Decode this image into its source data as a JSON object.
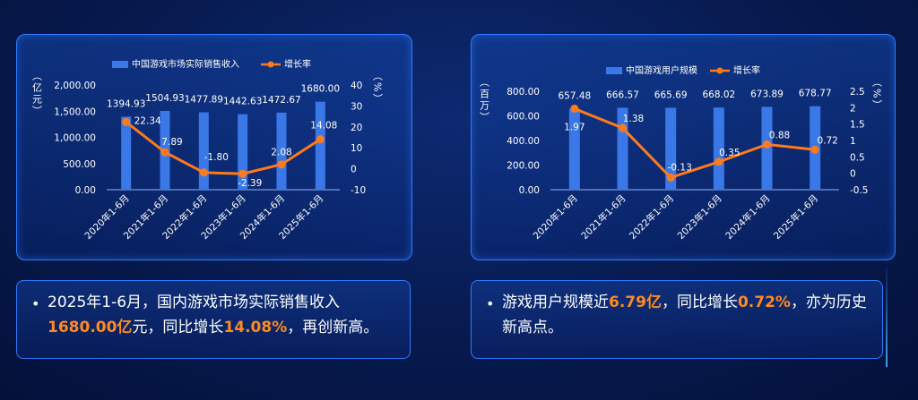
{
  "colors": {
    "bar": "#3a78e8",
    "line": "#ff7a1a",
    "highlight": "#ff8a1f",
    "text": "#ffffff"
  },
  "chart_data": [
    {
      "type": "bar",
      "categories": [
        "2020年1-6月",
        "2021年1-6月",
        "2022年1-6月",
        "2023年1-6月",
        "2024年1-6月",
        "2025年1-6月"
      ],
      "series": [
        {
          "name": "中国游戏市场实际销售收入",
          "type": "bar",
          "axis": "left",
          "values": [
            1394.93,
            1504.93,
            1477.89,
            1442.63,
            1472.67,
            1680.0
          ],
          "labels": [
            "1394.93",
            "1504.93",
            "1477.89",
            "1442.63",
            "1472.67",
            "1680.00"
          ]
        },
        {
          "name": "增长率",
          "type": "line",
          "axis": "right",
          "values": [
            22.34,
            7.89,
            -1.8,
            -2.39,
            2.08,
            14.08
          ],
          "labels": [
            "22.34",
            "7.89",
            "-1.80",
            "-2.39",
            "2.08",
            "14.08"
          ]
        }
      ],
      "ylabel_left": "（亿元）",
      "ylabel_right": "（%）",
      "ylim_left": [
        0,
        2000
      ],
      "ylim_right": [
        -10,
        40
      ],
      "yticks_left": [
        "2,000.00",
        "1,500.00",
        "1,000.00",
        "500.00",
        "0.00"
      ],
      "yticks_right": [
        "40",
        "30",
        "20",
        "10",
        "0",
        "-10"
      ],
      "legend_position": "top"
    },
    {
      "type": "bar",
      "categories": [
        "2020年1-6月",
        "2021年1-6月",
        "2022年1-6月",
        "2023年1-6月",
        "2024年1-6月",
        "2025年1-6月"
      ],
      "series": [
        {
          "name": "中国游戏用户规模",
          "type": "bar",
          "axis": "left",
          "values": [
            657.48,
            666.57,
            665.69,
            668.02,
            673.89,
            678.77
          ],
          "labels": [
            "657.48",
            "666.57",
            "665.69",
            "668.02",
            "673.89",
            "678.77"
          ]
        },
        {
          "name": "增长率",
          "type": "line",
          "axis": "right",
          "values": [
            1.97,
            1.38,
            -0.13,
            0.35,
            0.88,
            0.72
          ],
          "labels": [
            "1.97",
            "1.38",
            "-0.13",
            "0.35",
            "0.88",
            "0.72"
          ]
        }
      ],
      "ylabel_left": "（百万）",
      "ylabel_right": "（%）",
      "ylim_left": [
        0,
        800
      ],
      "ylim_right": [
        -0.5,
        2.5
      ],
      "yticks_left": [
        "800.00",
        "600.00",
        "400.00",
        "200.00",
        "0.00"
      ],
      "yticks_right": [
        "2.5",
        "2",
        "1.5",
        "1",
        "0.5",
        "0",
        "-0.5"
      ],
      "legend_position": "top"
    }
  ],
  "notes": {
    "left": {
      "bullet": "•",
      "p1": "2025年1-6月，国内游戏市场实际销售收入",
      "h1": "1680.00亿",
      "p2": "元，同比增长",
      "h2": "14.08%",
      "p3": "，再创新高。"
    },
    "right": {
      "bullet": "•",
      "p1": "游戏用户规模近",
      "h1": "6.79亿",
      "p2": "，同比增长",
      "h2": "0.72%",
      "p3": "，亦为历史新高点。"
    }
  }
}
